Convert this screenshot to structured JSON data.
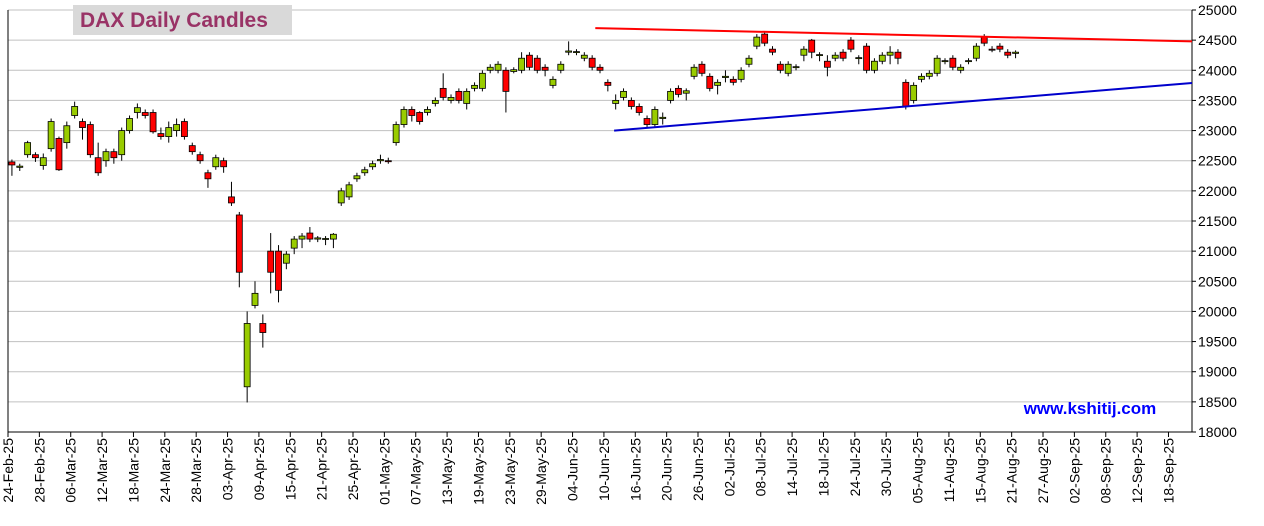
{
  "chart_data": {
    "type": "candlestick",
    "title": "DAX Daily Candles",
    "watermark": "www.kshitij.com",
    "up_color": "#99cc00",
    "down_color": "#ff0000",
    "ylim": [
      18000,
      25000
    ],
    "yticks": [
      18000,
      18500,
      19000,
      19500,
      20000,
      20500,
      21000,
      21500,
      22000,
      22500,
      23000,
      23500,
      24000,
      24500,
      25000
    ],
    "grid": true,
    "categories": [
      "24-Feb-25",
      null,
      null,
      null,
      "28-Feb-25",
      null,
      null,
      null,
      "06-Mar-25",
      null,
      null,
      null,
      "12-Mar-25",
      null,
      null,
      null,
      "18-Mar-25",
      null,
      null,
      null,
      "24-Mar-25",
      null,
      null,
      null,
      "28-Mar-25",
      null,
      null,
      null,
      "03-Apr-25",
      null,
      null,
      null,
      "09-Apr-25",
      null,
      null,
      null,
      "15-Apr-25",
      null,
      null,
      null,
      "21-Apr-25",
      null,
      null,
      null,
      "25-Apr-25",
      null,
      null,
      null,
      "01-May-25",
      null,
      null,
      null,
      "07-May-25",
      null,
      null,
      null,
      "13-May-25",
      null,
      null,
      null,
      "19-May-25",
      null,
      null,
      null,
      "23-May-25",
      null,
      null,
      null,
      "29-May-25",
      null,
      null,
      null,
      "04-Jun-25",
      null,
      null,
      null,
      "10-Jun-25",
      null,
      null,
      null,
      "16-Jun-25",
      null,
      null,
      null,
      "20-Jun-25",
      null,
      null,
      null,
      "26-Jun-25",
      null,
      null,
      null,
      "02-Jul-25",
      null,
      null,
      null,
      "08-Jul-25",
      null,
      null,
      null,
      "14-Jul-25",
      null,
      null,
      null,
      "18-Jul-25",
      null,
      null,
      null,
      "24-Jul-25",
      null,
      null,
      null,
      "30-Jul-25",
      null,
      null,
      null,
      "05-Aug-25",
      null,
      null,
      null,
      "11-Aug-25",
      null,
      null,
      null,
      "15-Aug-25",
      null,
      null,
      null,
      "21-Aug-25",
      null,
      null,
      null,
      "27-Aug-25",
      null,
      null,
      null,
      "02-Sep-25",
      null,
      null,
      null,
      "08-Sep-25",
      null,
      null,
      null,
      "12-Sep-25",
      null,
      null,
      null,
      "18-Sep-25",
      null,
      null
    ],
    "ohlc": [
      [
        22480,
        22520,
        22250,
        22430
      ],
      [
        22390,
        22450,
        22330,
        22410
      ],
      [
        22600,
        22830,
        22550,
        22800
      ],
      [
        22600,
        22640,
        22480,
        22550
      ],
      [
        22420,
        22620,
        22350,
        22550
      ],
      [
        22700,
        23200,
        22650,
        23150
      ],
      [
        22870,
        22900,
        22330,
        22350
      ],
      [
        22800,
        23150,
        22700,
        23080
      ],
      [
        23250,
        23480,
        23200,
        23400
      ],
      [
        23150,
        23200,
        22850,
        23050
      ],
      [
        23100,
        23150,
        22550,
        22600
      ],
      [
        22550,
        22800,
        22250,
        22300
      ],
      [
        22500,
        22700,
        22400,
        22650
      ],
      [
        22650,
        22700,
        22450,
        22550
      ],
      [
        22600,
        23050,
        22500,
        23000
      ],
      [
        23000,
        23250,
        22950,
        23200
      ],
      [
        23300,
        23450,
        23200,
        23380
      ],
      [
        23300,
        23350,
        23200,
        23250
      ],
      [
        23300,
        23350,
        22950,
        22980
      ],
      [
        22950,
        23050,
        22850,
        22900
      ],
      [
        22900,
        23150,
        22800,
        23050
      ],
      [
        23000,
        23200,
        22900,
        23100
      ],
      [
        23150,
        23200,
        22850,
        22900
      ],
      [
        22750,
        22800,
        22600,
        22650
      ],
      [
        22600,
        22650,
        22450,
        22500
      ],
      [
        22300,
        22350,
        22050,
        22200
      ],
      [
        22400,
        22600,
        22350,
        22550
      ],
      [
        22500,
        22550,
        22300,
        22400
      ],
      [
        21900,
        22150,
        21750,
        21800
      ],
      [
        21600,
        21650,
        20400,
        20650
      ],
      [
        18750,
        20000,
        18490,
        19800
      ],
      [
        20100,
        20500,
        20050,
        20300
      ],
      [
        19800,
        19950,
        19400,
        19650
      ],
      [
        21000,
        21300,
        20300,
        20650
      ],
      [
        21000,
        21100,
        20150,
        20350
      ],
      [
        20800,
        21000,
        20700,
        20950
      ],
      [
        21050,
        21250,
        20950,
        21200
      ],
      [
        21200,
        21300,
        21050,
        21250
      ],
      [
        21300,
        21400,
        21150,
        21200
      ],
      [
        21200,
        21250,
        21150,
        21220
      ],
      [
        21200,
        21250,
        21100,
        21210
      ],
      [
        21200,
        21300,
        21050,
        21280
      ],
      [
        21800,
        22050,
        21750,
        22000
      ],
      [
        21900,
        22150,
        21850,
        22100
      ],
      [
        22200,
        22300,
        22150,
        22250
      ],
      [
        22300,
        22400,
        22250,
        22350
      ],
      [
        22400,
        22500,
        22350,
        22450
      ],
      [
        22500,
        22600,
        22450,
        22520
      ],
      [
        22500,
        22550,
        22450,
        22490
      ],
      [
        22800,
        23150,
        22750,
        23100
      ],
      [
        23100,
        23400,
        23050,
        23350
      ],
      [
        23350,
        23400,
        23150,
        23250
      ],
      [
        23300,
        23320,
        23100,
        23150
      ],
      [
        23300,
        23400,
        23250,
        23350
      ],
      [
        23450,
        23550,
        23400,
        23500
      ],
      [
        23700,
        23950,
        23500,
        23550
      ],
      [
        23500,
        23600,
        23450,
        23550
      ],
      [
        23650,
        23700,
        23450,
        23500
      ],
      [
        23450,
        23700,
        23350,
        23650
      ],
      [
        23700,
        23800,
        23650,
        23750
      ],
      [
        23700,
        24000,
        23650,
        23950
      ],
      [
        24000,
        24100,
        23950,
        24050
      ],
      [
        24000,
        24150,
        23950,
        24100
      ],
      [
        24000,
        24050,
        23300,
        23650
      ],
      [
        23980,
        24050,
        23950,
        24010
      ],
      [
        24000,
        24300,
        23950,
        24200
      ],
      [
        24250,
        24300,
        24000,
        24050
      ],
      [
        24200,
        24250,
        23950,
        24000
      ],
      [
        24050,
        24100,
        23900,
        24000
      ],
      [
        23750,
        23900,
        23700,
        23850
      ],
      [
        24000,
        24150,
        23950,
        24100
      ],
      [
        24300,
        24480,
        24250,
        24320
      ],
      [
        24300,
        24350,
        24250,
        24310
      ],
      [
        24200,
        24300,
        24150,
        24250
      ],
      [
        24200,
        24250,
        24000,
        24050
      ],
      [
        24050,
        24100,
        23950,
        24000
      ],
      [
        23800,
        23850,
        23650,
        23750
      ],
      [
        23450,
        23600,
        23350,
        23500
      ],
      [
        23550,
        23700,
        23500,
        23650
      ],
      [
        23500,
        23550,
        23350,
        23400
      ],
      [
        23400,
        23450,
        23250,
        23300
      ],
      [
        23200,
        23250,
        23050,
        23100
      ],
      [
        23100,
        23400,
        23050,
        23350
      ],
      [
        23200,
        23300,
        23100,
        23220
      ],
      [
        23500,
        23700,
        23450,
        23650
      ],
      [
        23700,
        23750,
        23550,
        23600
      ],
      [
        23620,
        23700,
        23500,
        23660
      ],
      [
        23900,
        24100,
        23850,
        24050
      ],
      [
        24100,
        24150,
        23900,
        23950
      ],
      [
        23900,
        23950,
        23650,
        23700
      ],
      [
        23750,
        23850,
        23600,
        23800
      ],
      [
        23880,
        24000,
        23800,
        23900
      ],
      [
        23850,
        23900,
        23750,
        23800
      ],
      [
        23850,
        24050,
        23800,
        24000
      ],
      [
        24100,
        24250,
        24050,
        24200
      ],
      [
        24400,
        24600,
        24350,
        24550
      ],
      [
        24600,
        24650,
        24400,
        24450
      ],
      [
        24350,
        24400,
        24250,
        24300
      ],
      [
        24100,
        24150,
        23950,
        24000
      ],
      [
        23950,
        24150,
        23900,
        24100
      ],
      [
        24050,
        24100,
        24000,
        24060
      ],
      [
        24250,
        24400,
        24150,
        24350
      ],
      [
        24500,
        24520,
        24200,
        24300
      ],
      [
        24250,
        24300,
        24150,
        24260
      ],
      [
        24150,
        24250,
        23900,
        24050
      ],
      [
        24200,
        24300,
        24150,
        24250
      ],
      [
        24300,
        24350,
        24150,
        24200
      ],
      [
        24500,
        24550,
        24300,
        24350
      ],
      [
        24200,
        24250,
        24100,
        24210
      ],
      [
        24400,
        24450,
        23950,
        24000
      ],
      [
        24000,
        24200,
        23950,
        24150
      ],
      [
        24150,
        24300,
        24100,
        24250
      ],
      [
        24250,
        24400,
        24100,
        24300
      ],
      [
        24300,
        24350,
        24100,
        24200
      ],
      [
        23800,
        23850,
        23350,
        23400
      ],
      [
        23500,
        23800,
        23450,
        23750
      ],
      [
        23850,
        23950,
        23800,
        23900
      ],
      [
        23900,
        24000,
        23850,
        23950
      ],
      [
        23950,
        24250,
        23900,
        24200
      ],
      [
        24150,
        24200,
        24100,
        24160
      ],
      [
        24200,
        24250,
        24000,
        24050
      ],
      [
        24000,
        24100,
        23950,
        24050
      ],
      [
        24150,
        24200,
        24100,
        24160
      ],
      [
        24200,
        24450,
        24150,
        24400
      ],
      [
        24550,
        24600,
        24400,
        24450
      ],
      [
        24350,
        24400,
        24300,
        24340
      ],
      [
        24400,
        24450,
        24300,
        24350
      ],
      [
        24300,
        24350,
        24200,
        24250
      ],
      [
        24280,
        24330,
        24200,
        24300
      ],
      null,
      null,
      null,
      null,
      null,
      null,
      null,
      null,
      null,
      null,
      null,
      null,
      null,
      null,
      null,
      null,
      null,
      null,
      null,
      null,
      null,
      null
    ],
    "trendlines": [
      {
        "color": "#ff0000",
        "x": [
          74.4,
          150.5
        ],
        "values": [
          24700,
          24480
        ]
      },
      {
        "color": "#0000cc",
        "x": [
          76.8,
          150.5
        ],
        "values": [
          23000,
          23790
        ]
      }
    ]
  }
}
